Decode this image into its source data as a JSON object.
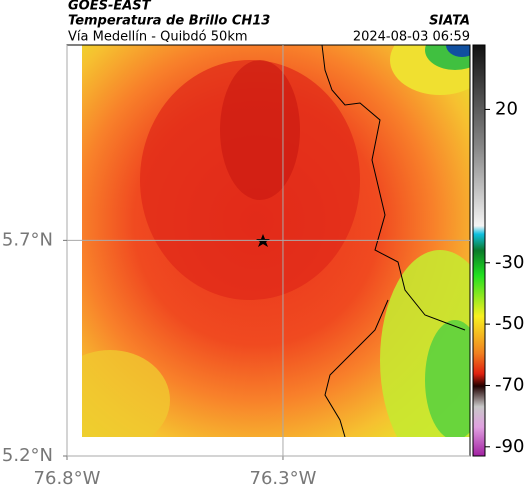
{
  "header": {
    "source": "GOES-EAST",
    "title": "Temperatura de Brillo CH13",
    "agency": "SIATA",
    "route": "Vía Medellín - Quibdó 50km",
    "timestamp": "2024-08-03 06:59"
  },
  "map": {
    "xlim": [
      -76.8,
      -75.867
    ],
    "ylim": [
      5.2,
      6.153
    ],
    "xticks": [
      {
        "value": -76.8,
        "label": "76.8°W"
      },
      {
        "value": -76.3,
        "label": "76.3°W"
      }
    ],
    "yticks": [
      {
        "value": 5.2,
        "label": "5.2°N"
      },
      {
        "value": 5.7,
        "label": "5.7°N"
      }
    ],
    "grid": true,
    "colorbar": {
      "lim": [
        -93,
        41
      ],
      "ticks": [
        20,
        -30,
        -50,
        -70,
        -90
      ]
    }
  }
}
